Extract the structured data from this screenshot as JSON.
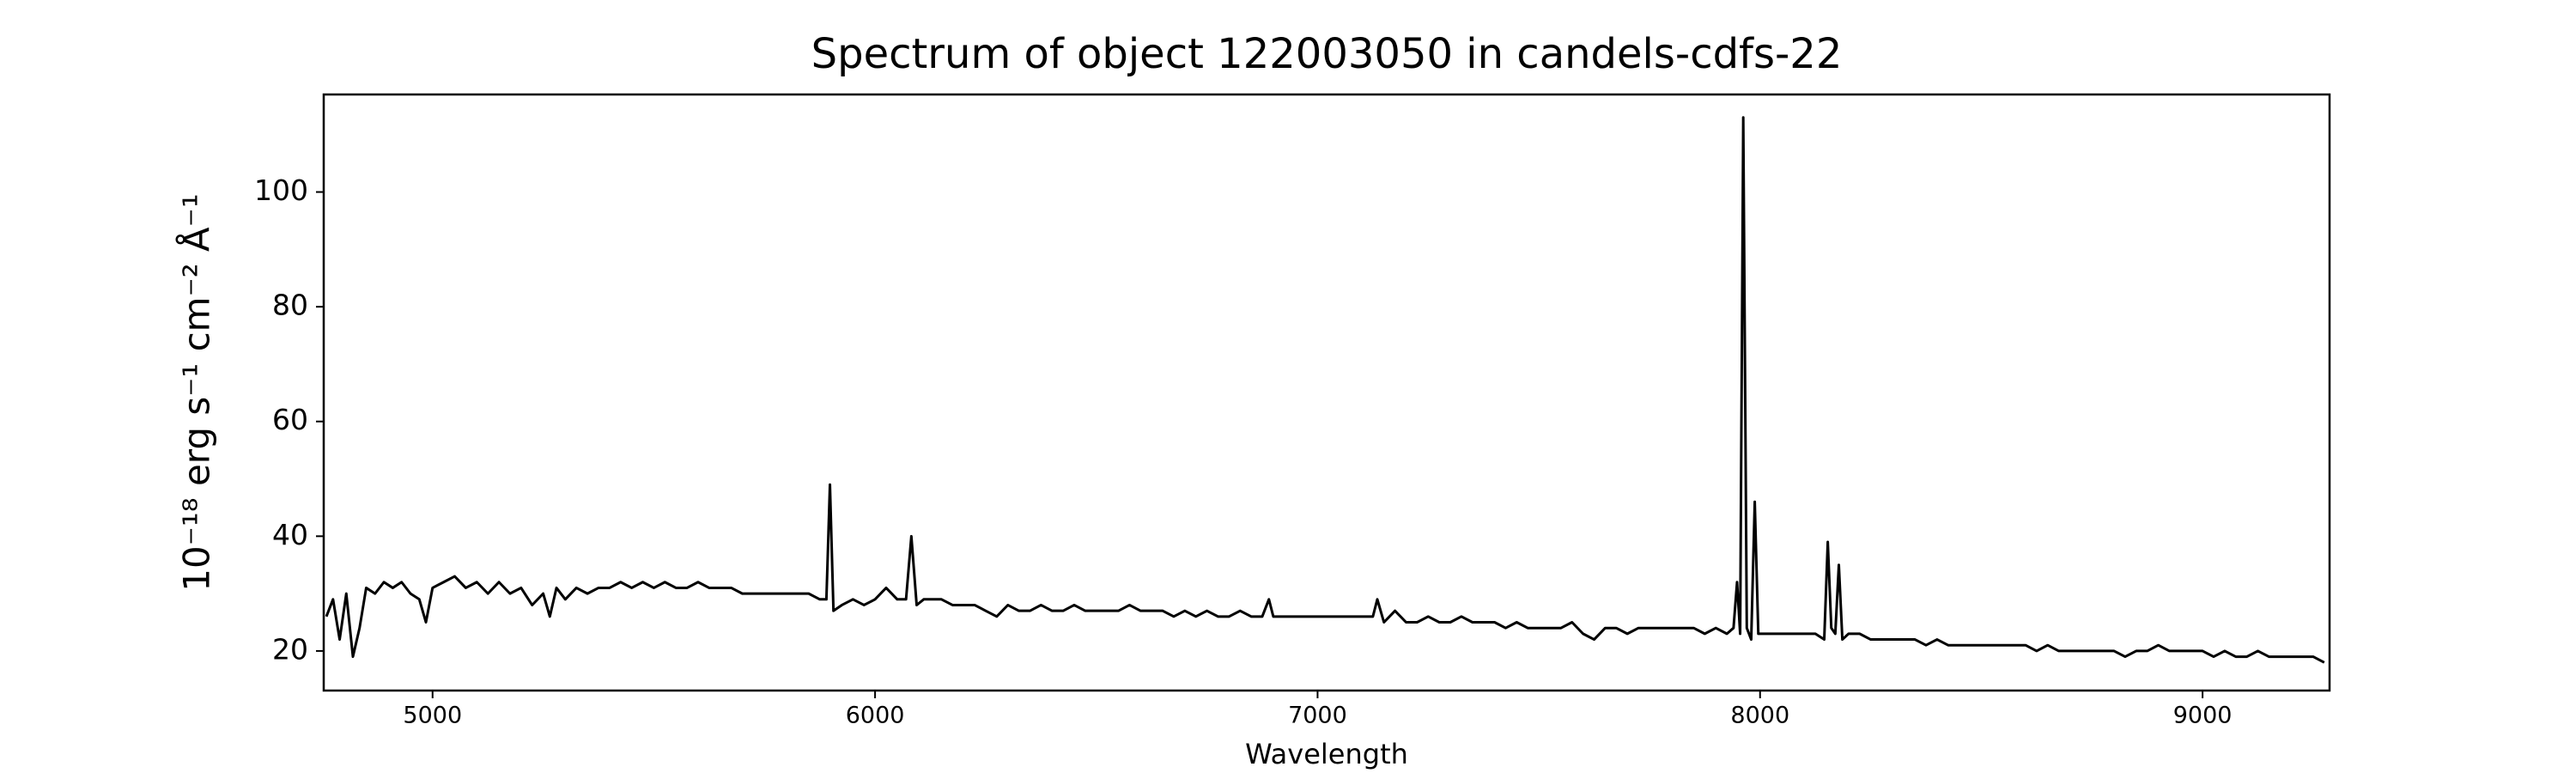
{
  "chart_data": {
    "type": "line",
    "title": "Spectrum of object 122003050 in candels-cdfs-22",
    "xlabel": "Wavelength",
    "ylabel": "10⁻¹⁸ erg s⁻¹ cm⁻² Å⁻¹",
    "xlim": [
      4754,
      9287
    ],
    "ylim": [
      13.1,
      117
    ],
    "xticks": [
      5000,
      6000,
      7000,
      8000,
      9000
    ],
    "yticks": [
      20,
      40,
      60,
      80,
      100
    ],
    "grid": false,
    "series": [
      {
        "color": "#000000",
        "x": [
          4760,
          4775,
          4790,
          4805,
          4820,
          4835,
          4850,
          4870,
          4890,
          4910,
          4930,
          4950,
          4970,
          4985,
          5000,
          5025,
          5050,
          5075,
          5100,
          5125,
          5150,
          5175,
          5200,
          5225,
          5250,
          5265,
          5280,
          5300,
          5325,
          5350,
          5375,
          5400,
          5425,
          5450,
          5475,
          5500,
          5525,
          5550,
          5575,
          5600,
          5625,
          5650,
          5675,
          5700,
          5725,
          5750,
          5775,
          5800,
          5825,
          5850,
          5875,
          5890,
          5898,
          5906,
          5925,
          5950,
          5975,
          6000,
          6025,
          6050,
          6070,
          6082,
          6094,
          6110,
          6130,
          6150,
          6175,
          6200,
          6225,
          6250,
          6275,
          6300,
          6325,
          6350,
          6375,
          6400,
          6425,
          6450,
          6475,
          6500,
          6525,
          6550,
          6575,
          6600,
          6625,
          6650,
          6675,
          6700,
          6725,
          6750,
          6775,
          6800,
          6825,
          6850,
          6875,
          6890,
          6900,
          6925,
          6950,
          6975,
          7000,
          7025,
          7050,
          7075,
          7100,
          7125,
          7135,
          7150,
          7175,
          7200,
          7225,
          7250,
          7275,
          7300,
          7325,
          7350,
          7375,
          7400,
          7425,
          7450,
          7475,
          7500,
          7525,
          7550,
          7575,
          7600,
          7625,
          7650,
          7675,
          7700,
          7725,
          7750,
          7775,
          7800,
          7825,
          7850,
          7875,
          7900,
          7925,
          7940,
          7948,
          7955,
          7962,
          7970,
          7980,
          7988,
          7996,
          8025,
          8050,
          8075,
          8100,
          8125,
          8145,
          8153,
          8161,
          8170,
          8178,
          8186,
          8200,
          8225,
          8250,
          8275,
          8300,
          8325,
          8350,
          8375,
          8400,
          8425,
          8450,
          8475,
          8500,
          8525,
          8550,
          8575,
          8600,
          8625,
          8650,
          8675,
          8700,
          8725,
          8750,
          8775,
          8800,
          8825,
          8850,
          8875,
          8900,
          8925,
          8950,
          8975,
          9000,
          9025,
          9050,
          9075,
          9100,
          9125,
          9150,
          9175,
          9200,
          9225,
          9250,
          9275
        ],
        "values": [
          26,
          29,
          22,
          30,
          19,
          24,
          31,
          30,
          32,
          31,
          32,
          30,
          29,
          25,
          31,
          32,
          33,
          31,
          32,
          30,
          32,
          30,
          31,
          28,
          30,
          26,
          31,
          29,
          31,
          30,
          31,
          31,
          32,
          31,
          32,
          31,
          32,
          31,
          31,
          32,
          31,
          31,
          31,
          30,
          30,
          30,
          30,
          30,
          30,
          30,
          29,
          29,
          49,
          27,
          28,
          29,
          28,
          29,
          31,
          29,
          29,
          40,
          28,
          29,
          29,
          29,
          28,
          28,
          28,
          27,
          26,
          28,
          27,
          27,
          28,
          27,
          27,
          28,
          27,
          27,
          27,
          27,
          28,
          27,
          27,
          27,
          26,
          27,
          26,
          27,
          26,
          26,
          27,
          26,
          26,
          29,
          26,
          26,
          26,
          26,
          26,
          26,
          26,
          26,
          26,
          26,
          29,
          25,
          27,
          25,
          25,
          26,
          25,
          25,
          26,
          25,
          25,
          25,
          24,
          25,
          24,
          24,
          24,
          24,
          25,
          23,
          22,
          24,
          24,
          23,
          24,
          24,
          24,
          24,
          24,
          24,
          23,
          24,
          23,
          24,
          32,
          23,
          113,
          24,
          22,
          46,
          23,
          23,
          23,
          23,
          23,
          23,
          22,
          39,
          24,
          23,
          35,
          22,
          23,
          23,
          22,
          22,
          22,
          22,
          22,
          21,
          22,
          21,
          21,
          21,
          21,
          21,
          21,
          21,
          21,
          20,
          21,
          20,
          20,
          20,
          20,
          20,
          20,
          19,
          20,
          20,
          21,
          20,
          20,
          20,
          20,
          19,
          20,
          19,
          19,
          20,
          19,
          19,
          19,
          19,
          19,
          18
        ]
      }
    ]
  }
}
